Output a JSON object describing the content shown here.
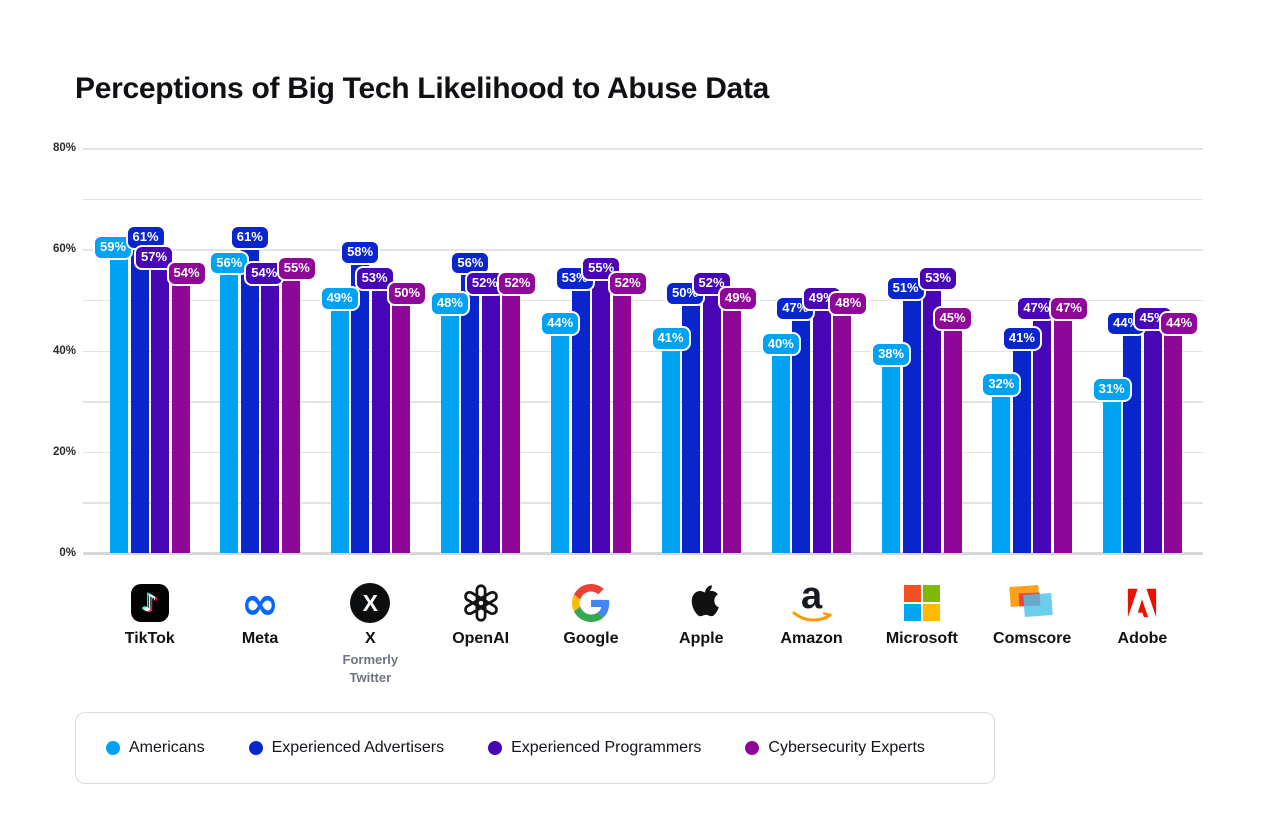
{
  "title": "Perceptions of Big Tech Likelihood to Abuse Data",
  "chart_data": {
    "type": "bar",
    "title": "Perceptions of Big Tech Likelihood to Abuse Data",
    "value_suffix": "%",
    "ylim": [
      0,
      80
    ],
    "grid": "horizontal lines every 10%",
    "legend_position": "bottom",
    "y_ticks": [
      {
        "label": "0%",
        "value": 0
      },
      {
        "label": "20%",
        "value": 20
      },
      {
        "label": "40%",
        "value": 40
      },
      {
        "label": "60%",
        "value": 60
      },
      {
        "label": "80%",
        "value": 80
      }
    ],
    "categories": [
      {
        "label": "TikTok",
        "icon": "tiktok-logo"
      },
      {
        "label": "Meta",
        "icon": "meta-logo"
      },
      {
        "label": "X",
        "sublabel": "Formerly Twitter",
        "icon": "x-logo"
      },
      {
        "label": "OpenAI",
        "icon": "openai-logo"
      },
      {
        "label": "Google",
        "icon": "google-logo"
      },
      {
        "label": "Apple",
        "icon": "apple-logo"
      },
      {
        "label": "Amazon",
        "icon": "amazon-logo"
      },
      {
        "label": "Microsoft",
        "icon": "microsoft-logo"
      },
      {
        "label": "Comscore",
        "icon": "comscore-logo"
      },
      {
        "label": "Adobe",
        "icon": "adobe-logo"
      }
    ],
    "series": [
      {
        "name": "Americans",
        "color": "#00A2F2",
        "values": [
          59,
          56,
          49,
          48,
          44,
          41,
          40,
          38,
          32,
          31
        ]
      },
      {
        "name": "Experienced Advertisers",
        "color": "#0826CC",
        "values": [
          61,
          61,
          58,
          56,
          53,
          50,
          47,
          51,
          41,
          44
        ]
      },
      {
        "name": "Experienced Programmers",
        "color": "#4705B5",
        "values": [
          57,
          54,
          53,
          52,
          55,
          52,
          49,
          53,
          47,
          45
        ]
      },
      {
        "name": "Cybersecurity Experts",
        "color": "#8F0798",
        "values": [
          54,
          55,
          50,
          52,
          52,
          49,
          48,
          45,
          47,
          44
        ]
      }
    ],
    "logo_colors": {
      "meta_blue": "#0866FF",
      "tiktok_cyan": "#25F4EE",
      "tiktok_pink": "#EE1D52",
      "google": [
        "#EA4335",
        "#4285F4",
        "#FBBC05",
        "#34A853"
      ],
      "microsoft": [
        "#F25022",
        "#7FBA00",
        "#00A4EF",
        "#FFB900"
      ],
      "amazon_orange": "#FF9900",
      "adobe_red": "#EB1000",
      "comscore": [
        "#F9A11B",
        "#E8453C",
        "#48C0E8"
      ]
    }
  }
}
